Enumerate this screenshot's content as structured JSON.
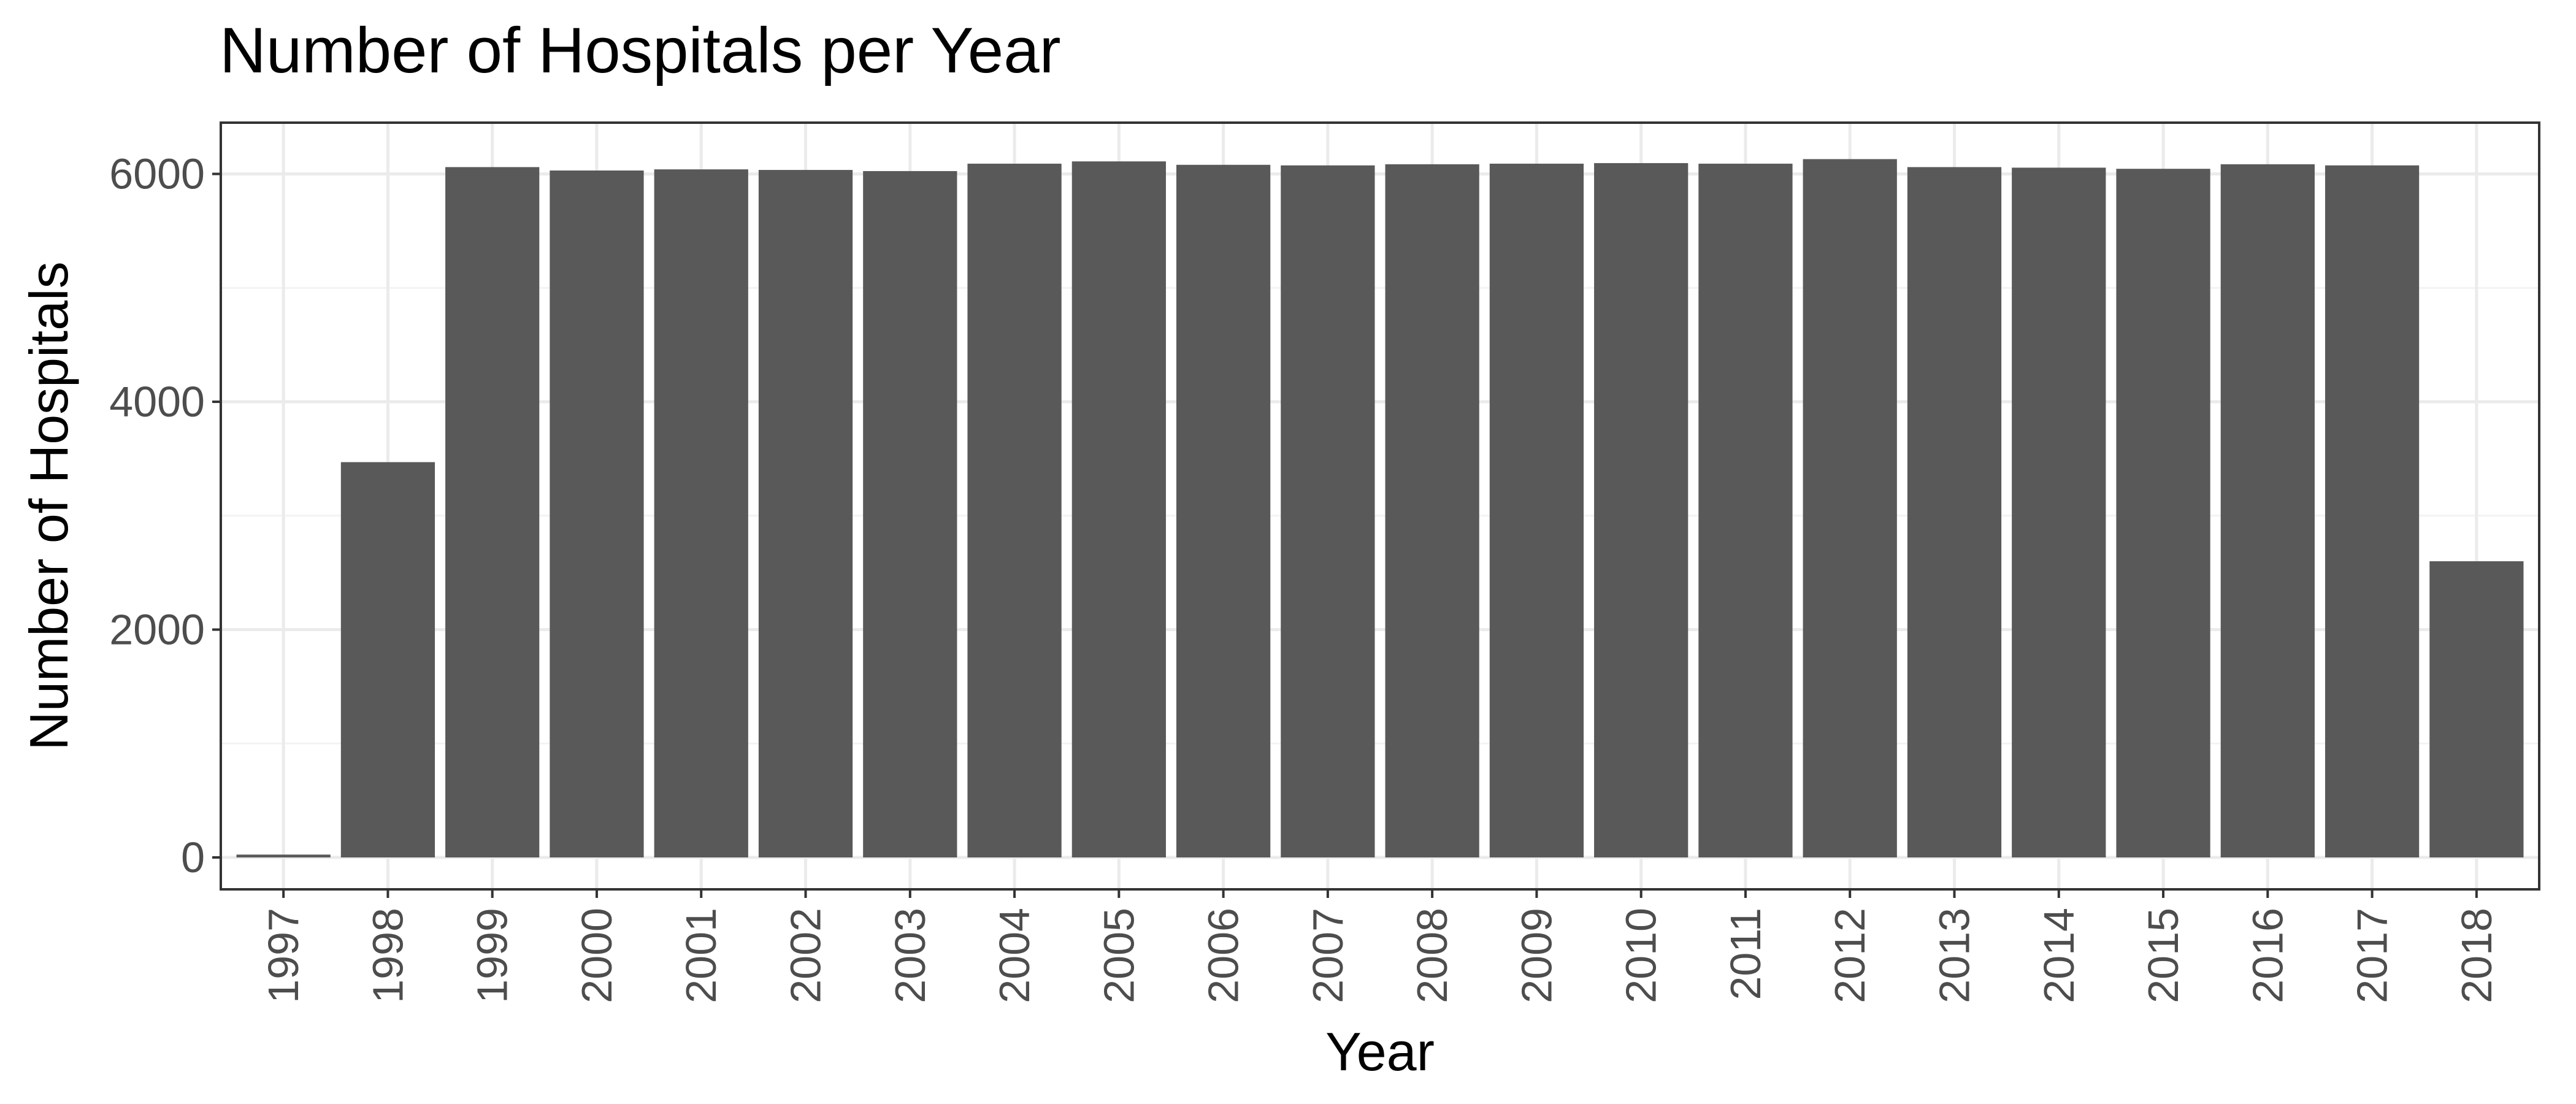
{
  "chart_data": {
    "type": "bar",
    "title": "Number of Hospitals per Year",
    "xlabel": "Year",
    "ylabel": "Number of Hospitals",
    "categories": [
      "1997",
      "1998",
      "1999",
      "2000",
      "2001",
      "2002",
      "2003",
      "2004",
      "2005",
      "2006",
      "2007",
      "2008",
      "2009",
      "2010",
      "2011",
      "2012",
      "2013",
      "2014",
      "2015",
      "2016",
      "2017",
      "2018"
    ],
    "values": [
      25,
      3470,
      6060,
      6030,
      6040,
      6035,
      6025,
      6090,
      6110,
      6080,
      6075,
      6085,
      6090,
      6095,
      6090,
      6130,
      6060,
      6055,
      6045,
      6085,
      6075,
      2600
    ],
    "ylim": [
      -280,
      6450
    ],
    "yticks": [
      0,
      2000,
      4000,
      6000
    ],
    "grid": true,
    "legend": "none",
    "colors": {
      "bar": "#595959",
      "panel_background": "#ffffff",
      "grid": "#ebebeb"
    }
  }
}
